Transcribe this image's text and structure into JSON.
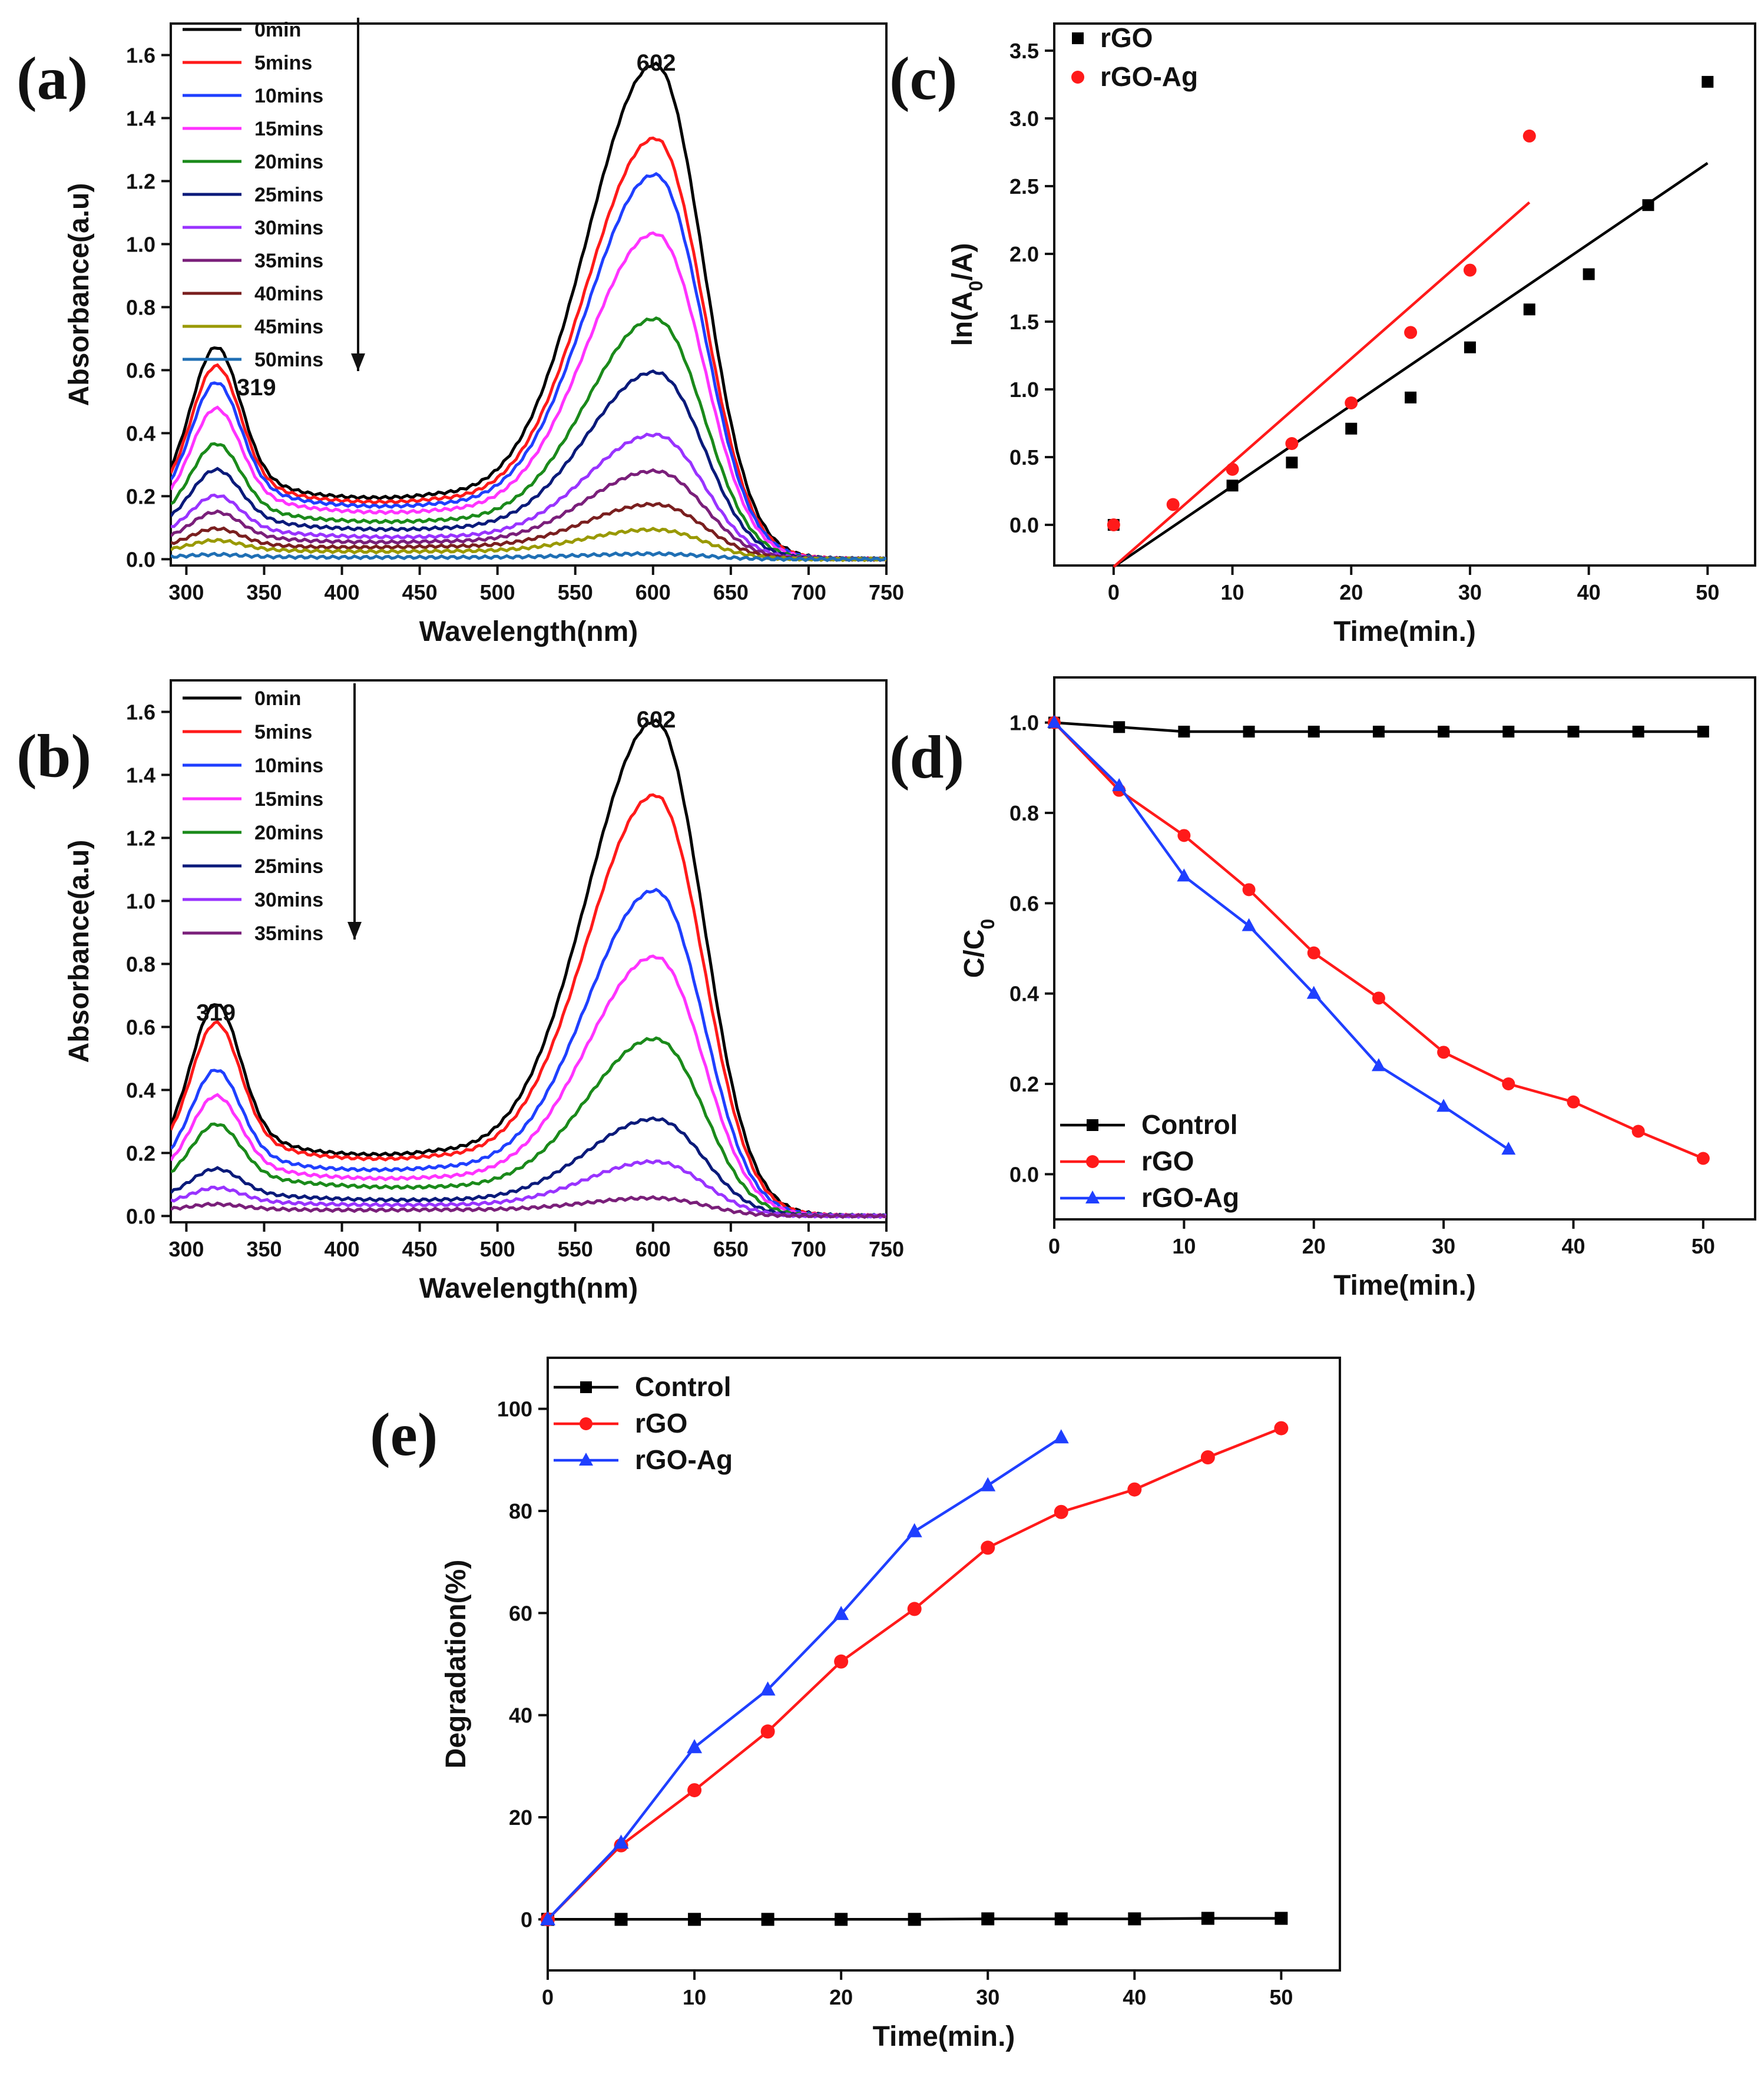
{
  "chart_data": [
    {
      "id": "a",
      "type": "line",
      "panel_label": "(a)",
      "xlabel": "Wavelength(nm)",
      "ylabel": "Absorbance(a.u)",
      "xlim": [
        290,
        750
      ],
      "ylim": [
        -0.02,
        1.7
      ],
      "xticks": [
        300,
        350,
        400,
        450,
        500,
        550,
        600,
        650,
        700,
        750
      ],
      "yticks": [
        0.0,
        0.2,
        0.4,
        0.6,
        0.8,
        1.0,
        1.2,
        1.4,
        1.6
      ],
      "annotations": [
        {
          "text": "602",
          "x": 602,
          "y": 1.55
        },
        {
          "text": "319",
          "x": 345,
          "y": 0.52
        }
      ],
      "series": [
        {
          "name": "0min",
          "color": "#000000",
          "uv": 0.58,
          "trough": 0.16,
          "shoulder": 0.2,
          "peak": 1.5
        },
        {
          "name": "5mins",
          "color": "#ff1a1a",
          "uv": 0.52,
          "trough": 0.15,
          "shoulder": 0.185,
          "peak": 1.27
        },
        {
          "name": "10mins",
          "color": "#1f3fff",
          "uv": 0.47,
          "trough": 0.14,
          "shoulder": 0.17,
          "peak": 1.16
        },
        {
          "name": "15mins",
          "color": "#ff33ff",
          "uv": 0.39,
          "trough": 0.125,
          "shoulder": 0.15,
          "peak": 0.98
        },
        {
          "name": "20mins",
          "color": "#1a8a1a",
          "uv": 0.29,
          "trough": 0.1,
          "shoulder": 0.12,
          "peak": 0.72
        },
        {
          "name": "25mins",
          "color": "#0a1a7a",
          "uv": 0.22,
          "trough": 0.08,
          "shoulder": 0.095,
          "peak": 0.56
        },
        {
          "name": "30mins",
          "color": "#9933ff",
          "uv": 0.15,
          "trough": 0.06,
          "shoulder": 0.07,
          "peak": 0.37
        },
        {
          "name": "35mins",
          "color": "#7a1f7a",
          "uv": 0.11,
          "trough": 0.045,
          "shoulder": 0.055,
          "peak": 0.26
        },
        {
          "name": "40mins",
          "color": "#7a1f1f",
          "uv": 0.07,
          "trough": 0.03,
          "shoulder": 0.04,
          "peak": 0.16
        },
        {
          "name": "45mins",
          "color": "#999900",
          "uv": 0.04,
          "trough": 0.02,
          "shoulder": 0.025,
          "peak": 0.085
        },
        {
          "name": "50mins",
          "color": "#1f6fb4",
          "uv": 0.01,
          "trough": 0.005,
          "shoulder": 0.006,
          "peak": 0.015
        }
      ]
    },
    {
      "id": "b",
      "type": "line",
      "panel_label": "(b)",
      "xlabel": "Wavelength(nm)",
      "ylabel": "Absorbance(a.u)",
      "xlim": [
        290,
        750
      ],
      "ylim": [
        -0.02,
        1.7
      ],
      "xticks": [
        300,
        350,
        400,
        450,
        500,
        550,
        600,
        650,
        700,
        750
      ],
      "yticks": [
        0.0,
        0.2,
        0.4,
        0.6,
        0.8,
        1.0,
        1.2,
        1.4,
        1.6
      ],
      "annotations": [
        {
          "text": "602",
          "x": 602,
          "y": 1.55
        },
        {
          "text": "319",
          "x": 319,
          "y": 0.62
        }
      ],
      "series": [
        {
          "name": "0min",
          "color": "#000000",
          "uv": 0.58,
          "trough": 0.16,
          "shoulder": 0.2,
          "peak": 1.5
        },
        {
          "name": "5mins",
          "color": "#ff1a1a",
          "uv": 0.52,
          "trough": 0.15,
          "shoulder": 0.185,
          "peak": 1.27
        },
        {
          "name": "10mins",
          "color": "#1f3fff",
          "uv": 0.38,
          "trough": 0.12,
          "shoulder": 0.15,
          "peak": 0.98
        },
        {
          "name": "15mins",
          "color": "#ff33ff",
          "uv": 0.31,
          "trough": 0.1,
          "shoulder": 0.12,
          "peak": 0.78
        },
        {
          "name": "20mins",
          "color": "#1a8a1a",
          "uv": 0.23,
          "trough": 0.08,
          "shoulder": 0.09,
          "peak": 0.53
        },
        {
          "name": "25mins",
          "color": "#0a1a7a",
          "uv": 0.11,
          "trough": 0.045,
          "shoulder": 0.05,
          "peak": 0.29
        },
        {
          "name": "30mins",
          "color": "#9933ff",
          "uv": 0.06,
          "trough": 0.03,
          "shoulder": 0.035,
          "peak": 0.16
        },
        {
          "name": "35mins",
          "color": "#7a1f7a",
          "uv": 0.02,
          "trough": 0.015,
          "shoulder": 0.02,
          "peak": 0.05
        }
      ]
    },
    {
      "id": "c",
      "type": "scatter",
      "panel_label": "(c)",
      "xlabel": "Time(min.)",
      "ylabel": "ln(A0/A)",
      "xlim": [
        -5,
        54
      ],
      "ylim": [
        -0.3,
        3.7
      ],
      "xticks": [
        0,
        10,
        20,
        30,
        40,
        50
      ],
      "yticks": [
        0.0,
        0.5,
        1.0,
        1.5,
        2.0,
        2.5,
        3.0,
        3.5
      ],
      "series": [
        {
          "name": "rGO",
          "color": "#000000",
          "marker": "square",
          "x": [
            0,
            10,
            15,
            20,
            25,
            30,
            35,
            40,
            45,
            50
          ],
          "y": [
            0.0,
            0.29,
            0.46,
            0.71,
            0.94,
            1.31,
            1.59,
            1.85,
            2.36,
            3.27
          ],
          "fit": {
            "x": [
              0,
              50
            ],
            "y": [
              -0.31,
              2.67
            ]
          }
        },
        {
          "name": "rGO-Ag",
          "color": "#ff1a1a",
          "marker": "circle",
          "x": [
            0,
            5,
            10,
            15,
            20,
            25,
            30,
            35
          ],
          "y": [
            0.0,
            0.15,
            0.41,
            0.6,
            0.9,
            1.42,
            1.88,
            2.87
          ],
          "fit": {
            "x": [
              0,
              35
            ],
            "y": [
              -0.31,
              2.38
            ]
          }
        }
      ]
    },
    {
      "id": "d",
      "type": "line",
      "panel_label": "(d)",
      "xlabel": "Time(min.)",
      "ylabel": "C/C0",
      "xlim": [
        0,
        54
      ],
      "ylim": [
        -0.1,
        1.1
      ],
      "xticks": [
        0,
        10,
        20,
        30,
        40,
        50
      ],
      "yticks": [
        0.0,
        0.2,
        0.4,
        0.6,
        0.8,
        1.0
      ],
      "series": [
        {
          "name": "Control",
          "color": "#000000",
          "marker": "square",
          "x": [
            0,
            5,
            10,
            15,
            20,
            25,
            30,
            35,
            40,
            45,
            50
          ],
          "y": [
            1.0,
            0.99,
            0.98,
            0.98,
            0.98,
            0.98,
            0.98,
            0.98,
            0.98,
            0.98,
            0.98
          ]
        },
        {
          "name": "rGO",
          "color": "#ff1a1a",
          "marker": "circle",
          "x": [
            0,
            5,
            10,
            15,
            20,
            25,
            30,
            35,
            40,
            45,
            50
          ],
          "y": [
            1.0,
            0.85,
            0.75,
            0.63,
            0.49,
            0.39,
            0.27,
            0.2,
            0.16,
            0.095,
            0.035
          ]
        },
        {
          "name": "rGO-Ag",
          "color": "#1f3fff",
          "marker": "triangle",
          "x": [
            0,
            5,
            10,
            15,
            20,
            25,
            30,
            35
          ],
          "y": [
            1.0,
            0.86,
            0.66,
            0.55,
            0.4,
            0.24,
            0.15,
            0.055
          ]
        }
      ]
    },
    {
      "id": "e",
      "type": "line",
      "panel_label": "(e)",
      "xlabel": "Time(min.)",
      "ylabel": "Degradation(%)",
      "xlim": [
        0,
        54
      ],
      "ylim": [
        -10,
        110
      ],
      "xticks": [
        0,
        10,
        20,
        30,
        40,
        50
      ],
      "yticks": [
        0,
        20,
        40,
        60,
        80,
        100
      ],
      "series": [
        {
          "name": "Control",
          "color": "#000000",
          "marker": "square",
          "x": [
            0,
            5,
            10,
            15,
            20,
            25,
            30,
            35,
            40,
            45,
            50
          ],
          "y": [
            0,
            0,
            0,
            0,
            0,
            0,
            0.1,
            0.1,
            0.1,
            0.2,
            0.2
          ]
        },
        {
          "name": "rGO",
          "color": "#ff1a1a",
          "marker": "circle",
          "x": [
            0,
            5,
            10,
            15,
            20,
            25,
            30,
            35,
            40,
            45,
            50
          ],
          "y": [
            0,
            14.5,
            25.3,
            36.8,
            50.5,
            60.8,
            72.8,
            79.8,
            84.2,
            90.5,
            96.2
          ]
        },
        {
          "name": "rGO-Ag",
          "color": "#1f3fff",
          "marker": "triangle",
          "x": [
            0,
            5,
            10,
            15,
            20,
            25,
            30,
            35
          ],
          "y": [
            0,
            15,
            33.7,
            45.0,
            59.8,
            76.0,
            85.0,
            94.4
          ]
        }
      ]
    }
  ]
}
